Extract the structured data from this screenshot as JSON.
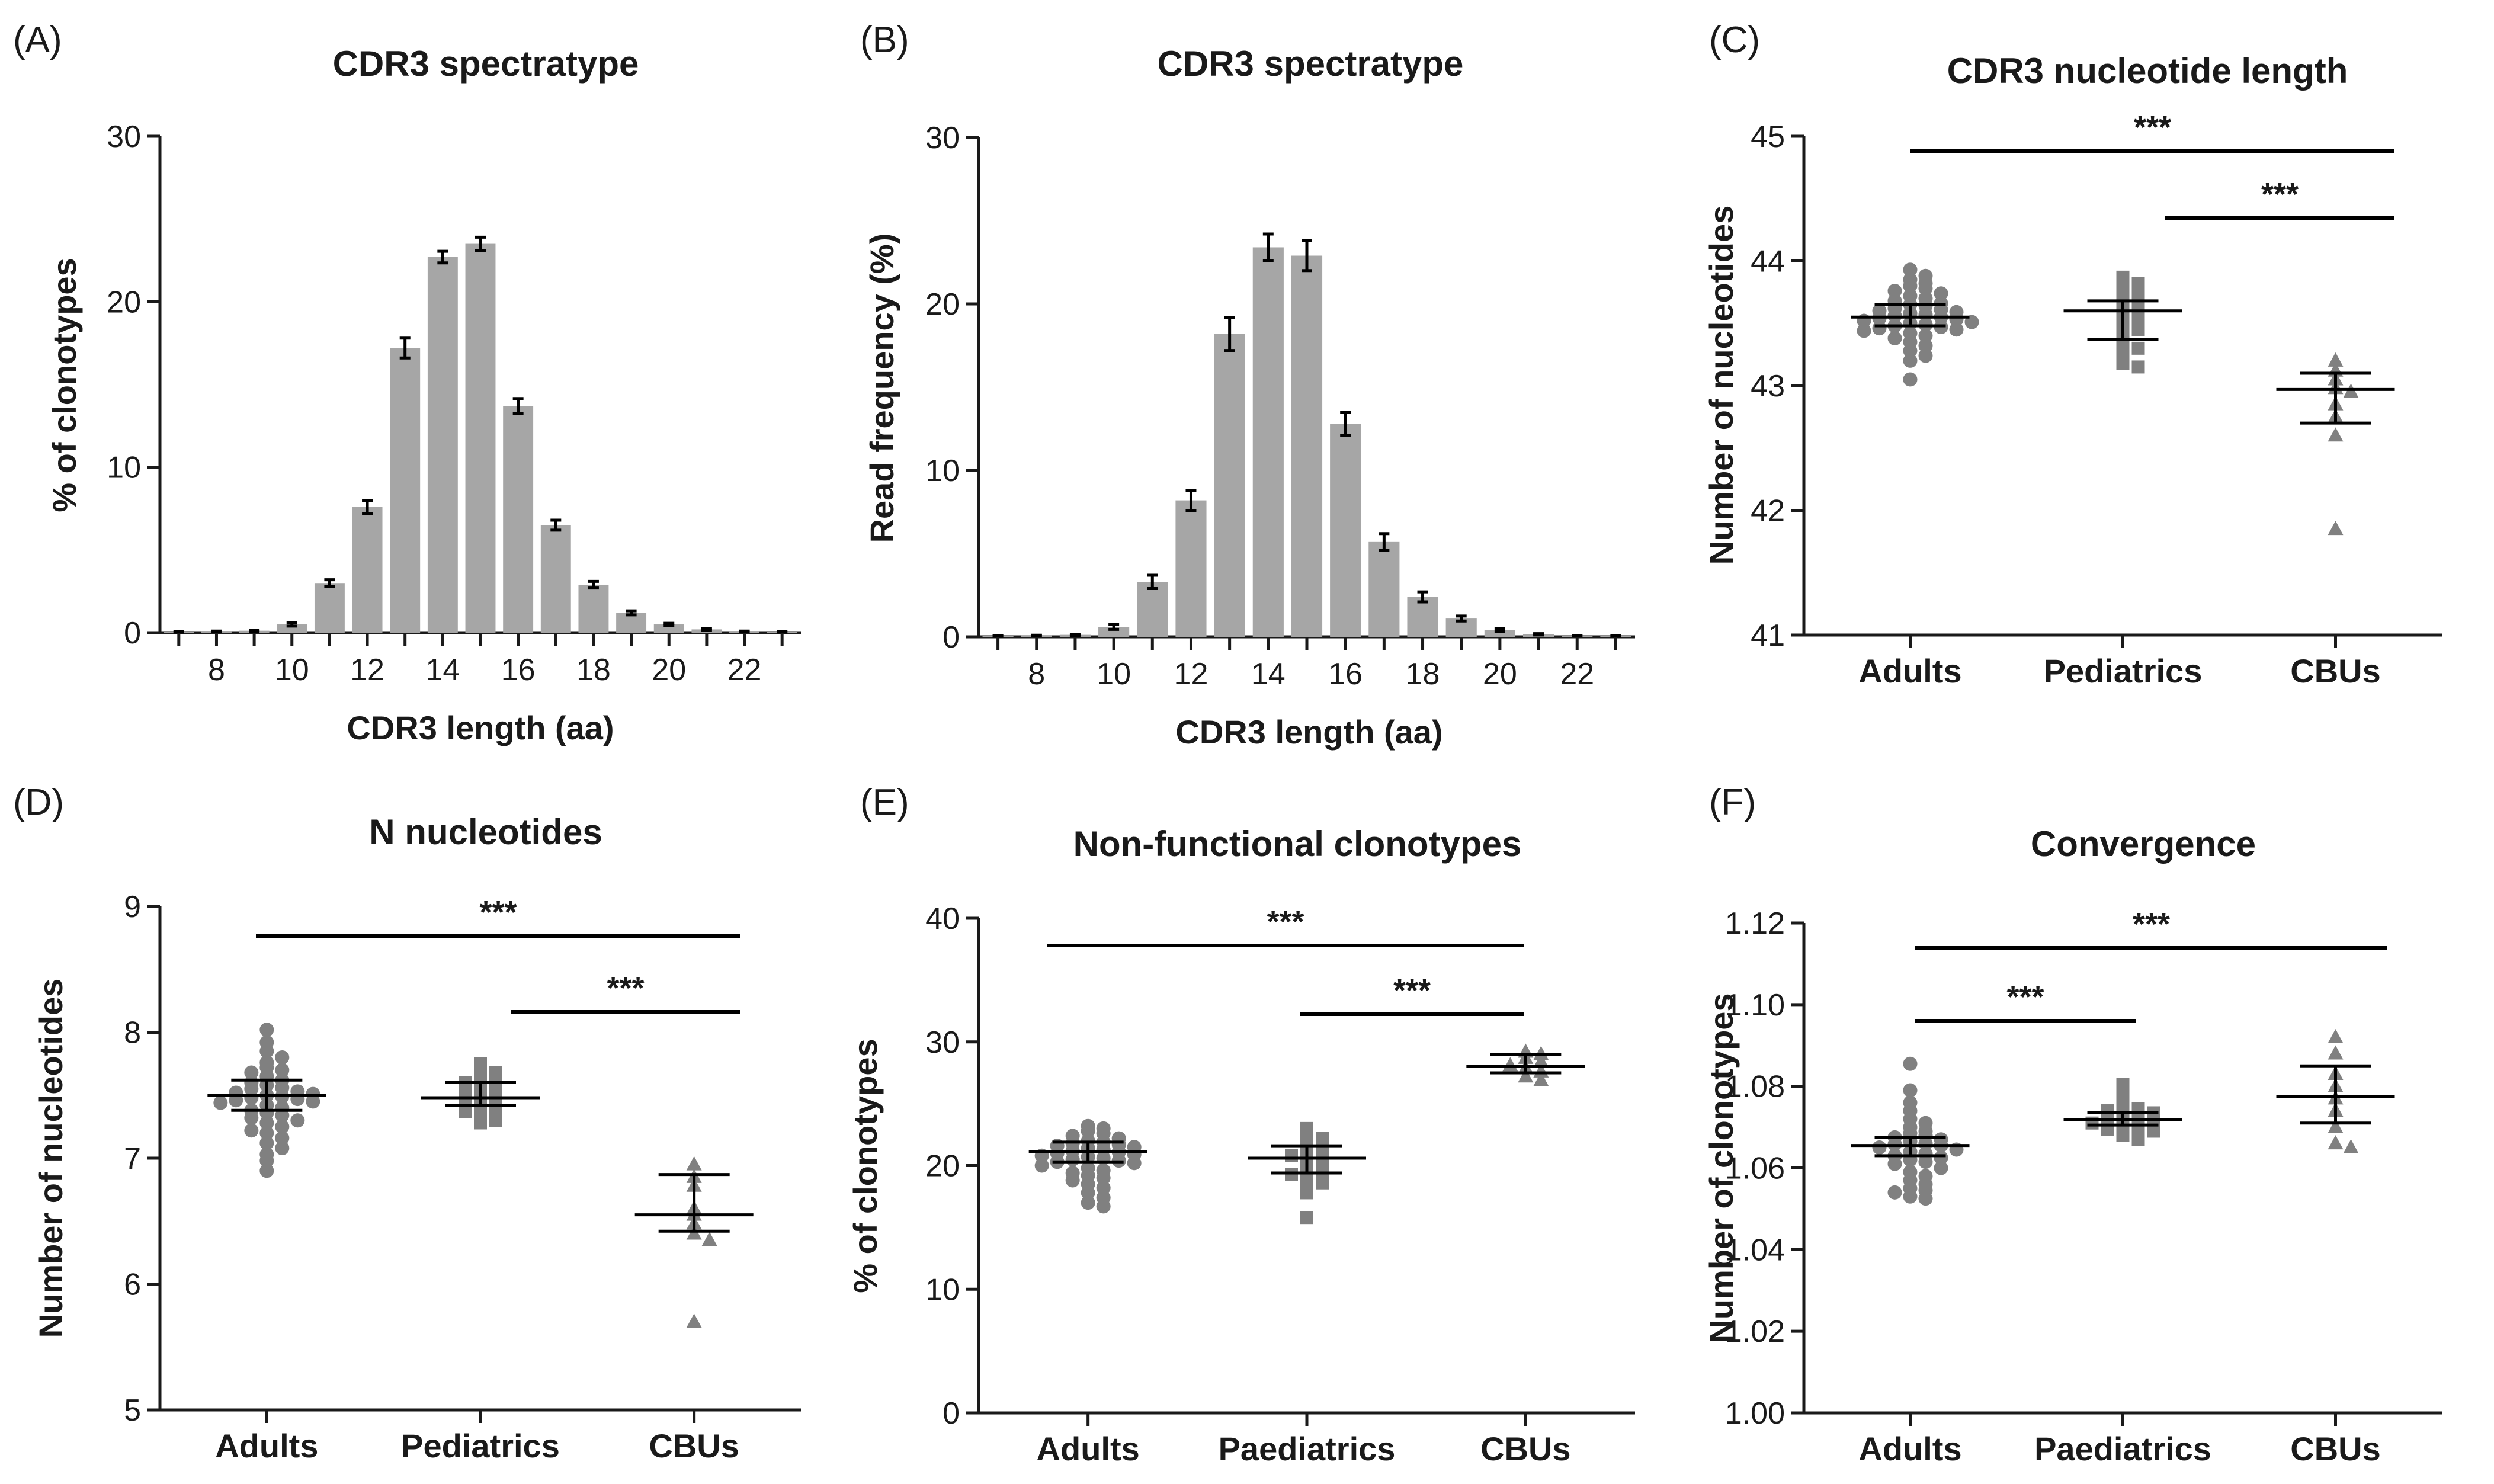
{
  "colors": {
    "bar": "#a6a6a6",
    "point": "#808080",
    "line": "#000000"
  },
  "chart_data": [
    {
      "panel": "(A)",
      "type": "bar",
      "title": "CDR3 spectratype",
      "xlabel": "CDR3 length (aa)",
      "ylabel": "% of clonotypes",
      "categories": [
        7,
        8,
        9,
        10,
        11,
        12,
        13,
        14,
        15,
        16,
        17,
        18,
        19,
        20,
        21,
        22,
        23
      ],
      "xtick_labels": [
        "8",
        "10",
        "12",
        "14",
        "16",
        "18",
        "20",
        "22"
      ],
      "values": [
        0.05,
        0.08,
        0.12,
        0.5,
        3.0,
        7.6,
        17.2,
        22.7,
        23.5,
        13.7,
        6.5,
        2.9,
        1.2,
        0.5,
        0.2,
        0.08,
        0.05
      ],
      "errors": [
        0.02,
        0.02,
        0.03,
        0.1,
        0.2,
        0.4,
        0.6,
        0.35,
        0.4,
        0.45,
        0.3,
        0.2,
        0.12,
        0.07,
        0.04,
        0.02,
        0.02
      ],
      "ylim": [
        0,
        30
      ],
      "yticks": [
        0,
        10,
        20,
        30
      ]
    },
    {
      "panel": "(B)",
      "type": "bar",
      "title": "CDR3 spectratype",
      "xlabel": "CDR3 length (aa)",
      "ylabel": "Read frequency (%)",
      "categories": [
        7,
        8,
        9,
        10,
        11,
        12,
        13,
        14,
        15,
        16,
        17,
        18,
        19,
        20,
        21,
        22,
        23
      ],
      "xtick_labels": [
        "8",
        "10",
        "12",
        "14",
        "16",
        "18",
        "20",
        "22"
      ],
      "values": [
        0.05,
        0.08,
        0.12,
        0.6,
        3.3,
        8.2,
        18.2,
        23.4,
        22.9,
        12.8,
        5.7,
        2.4,
        1.1,
        0.4,
        0.15,
        0.07,
        0.05
      ],
      "errors": [
        0.02,
        0.02,
        0.03,
        0.15,
        0.4,
        0.6,
        1.0,
        0.8,
        0.9,
        0.7,
        0.5,
        0.3,
        0.15,
        0.08,
        0.04,
        0.02,
        0.02
      ],
      "ylim": [
        0,
        30
      ],
      "yticks": [
        0,
        10,
        20,
        30
      ]
    },
    {
      "panel": "(C)",
      "type": "scatter",
      "title": "CDR3 nucleotide length",
      "ylabel": "Number of nucleotides",
      "categories": [
        "Adults",
        "Pediatrics",
        "CBUs"
      ],
      "ylim": [
        41,
        45
      ],
      "yticks": [
        "41",
        "42",
        "43",
        "44",
        "45"
      ],
      "series": [
        {
          "name": "Adults",
          "marker": "circle",
          "median": 43.55,
          "q1": 43.48,
          "q3": 43.65,
          "values": [
            43.93,
            43.88,
            43.85,
            43.82,
            43.8,
            43.78,
            43.76,
            43.74,
            43.72,
            43.7,
            43.68,
            43.66,
            43.65,
            43.64,
            43.62,
            43.61,
            43.6,
            43.59,
            43.58,
            43.57,
            43.56,
            43.55,
            43.54,
            43.53,
            43.52,
            43.51,
            43.5,
            43.49,
            43.48,
            43.47,
            43.46,
            43.45,
            43.44,
            43.42,
            43.4,
            43.38,
            43.35,
            43.32,
            43.28,
            43.24,
            43.2,
            43.05
          ]
        },
        {
          "name": "Pediatrics",
          "marker": "square",
          "median": 43.6,
          "q1": 43.37,
          "q3": 43.68,
          "values": [
            43.87,
            43.82,
            43.78,
            43.74,
            43.7,
            43.66,
            43.62,
            43.6,
            43.58,
            43.55,
            43.5,
            43.45,
            43.4,
            43.35,
            43.3,
            43.25,
            43.18,
            43.15
          ]
        },
        {
          "name": "CBUs",
          "marker": "triangle",
          "median": 42.97,
          "q1": 42.7,
          "q3": 43.1,
          "values": [
            43.2,
            43.12,
            43.05,
            42.98,
            42.95,
            42.85,
            42.75,
            42.6,
            41.85
          ]
        }
      ],
      "significance": [
        {
          "from": "Adults",
          "to": "CBUs",
          "label": "***"
        },
        {
          "from": "Pediatrics",
          "to": "CBUs",
          "label": "***"
        }
      ]
    },
    {
      "panel": "(D)",
      "type": "scatter",
      "title": "N nucleotides",
      "ylabel": "Number of nucleotides",
      "categories": [
        "Adults",
        "Pediatrics",
        "CBUs"
      ],
      "ylim": [
        5,
        9
      ],
      "yticks": [
        "5",
        "6",
        "7",
        "8",
        "9"
      ],
      "series": [
        {
          "name": "Adults",
          "marker": "circle",
          "median": 7.5,
          "q1": 7.38,
          "q3": 7.62,
          "values": [
            8.02,
            7.92,
            7.85,
            7.8,
            7.76,
            7.72,
            7.7,
            7.68,
            7.65,
            7.62,
            7.6,
            7.58,
            7.56,
            7.55,
            7.53,
            7.52,
            7.51,
            7.5,
            7.49,
            7.48,
            7.47,
            7.46,
            7.45,
            7.44,
            7.42,
            7.4,
            7.38,
            7.36,
            7.34,
            7.32,
            7.3,
            7.28,
            7.25,
            7.22,
            7.2,
            7.16,
            7.12,
            7.08,
            7.03,
            6.98,
            6.9
          ]
        },
        {
          "name": "Pediatrics",
          "marker": "square",
          "median": 7.48,
          "q1": 7.42,
          "q3": 7.6,
          "values": [
            7.75,
            7.72,
            7.68,
            7.65,
            7.62,
            7.6,
            7.57,
            7.54,
            7.52,
            7.5,
            7.48,
            7.45,
            7.42,
            7.4,
            7.37,
            7.34,
            7.3,
            7.28
          ]
        },
        {
          "name": "CBUs",
          "marker": "triangle",
          "median": 6.55,
          "q1": 6.42,
          "q3": 6.87,
          "values": [
            6.95,
            6.85,
            6.78,
            6.6,
            6.55,
            6.48,
            6.4,
            6.35,
            5.7
          ]
        }
      ],
      "significance": [
        {
          "from": "Adults",
          "to": "CBUs",
          "label": "***"
        },
        {
          "from": "Pediatrics",
          "to": "CBUs",
          "label": "***"
        }
      ]
    },
    {
      "panel": "(E)",
      "type": "scatter",
      "title": "Non-functional clonotypes",
      "ylabel": "% of clonotypes",
      "categories": [
        "Adults",
        "Paediatrics",
        "CBUs"
      ],
      "ylim": [
        0,
        40
      ],
      "yticks": [
        "0",
        "10",
        "20",
        "30",
        "40"
      ],
      "series": [
        {
          "name": "Adults",
          "marker": "circle",
          "median": 21.1,
          "q1": 20.3,
          "q3": 21.9,
          "values": [
            23.2,
            23.0,
            22.8,
            22.6,
            22.4,
            22.2,
            22.0,
            21.9,
            21.8,
            21.7,
            21.6,
            21.5,
            21.4,
            21.3,
            21.2,
            21.1,
            21.0,
            20.9,
            20.8,
            20.7,
            20.6,
            20.5,
            20.4,
            20.3,
            20.2,
            20.0,
            19.8,
            19.6,
            19.4,
            19.2,
            19.0,
            18.8,
            18.5,
            18.2,
            17.8,
            17.4,
            17.0,
            16.7
          ]
        },
        {
          "name": "Paediatrics",
          "marker": "square",
          "median": 20.6,
          "q1": 19.4,
          "q3": 21.6,
          "values": [
            23.0,
            22.6,
            22.2,
            21.9,
            21.6,
            21.3,
            21.0,
            20.8,
            20.5,
            20.2,
            19.9,
            19.6,
            19.3,
            19.0,
            18.6,
            18.2,
            17.8,
            15.8
          ]
        },
        {
          "name": "CBUs",
          "marker": "triangle",
          "median": 28.0,
          "q1": 27.5,
          "q3": 29.0,
          "values": [
            29.2,
            29.0,
            28.7,
            28.4,
            28.1,
            27.9,
            27.6,
            27.2,
            26.9
          ]
        }
      ],
      "significance": [
        {
          "from": "Adults",
          "to": "CBUs",
          "label": "***"
        },
        {
          "from": "Paediatrics",
          "to": "CBUs",
          "label": "***"
        }
      ]
    },
    {
      "panel": "(F)",
      "type": "scatter",
      "title": "Convergence",
      "ylabel": "Number of clonotypes",
      "categories": [
        "Adults",
        "Paediatrics",
        "CBUs"
      ],
      "ylim": [
        1.0,
        1.12
      ],
      "yticks": [
        "1.00",
        "1.02",
        "1.04",
        "1.06",
        "1.08",
        "1.10",
        "1.12"
      ],
      "series": [
        {
          "name": "Adults",
          "marker": "circle",
          "median": 1.0655,
          "q1": 1.063,
          "q3": 1.0675,
          "values": [
            1.0855,
            1.079,
            1.076,
            1.074,
            1.072,
            1.071,
            1.07,
            1.069,
            1.0685,
            1.068,
            1.0675,
            1.067,
            1.0665,
            1.066,
            1.0658,
            1.0655,
            1.065,
            1.0645,
            1.064,
            1.0635,
            1.063,
            1.0625,
            1.062,
            1.0615,
            1.061,
            1.06,
            1.059,
            1.058,
            1.057,
            1.056,
            1.055,
            1.0545,
            1.054,
            1.053,
            1.0525
          ]
        },
        {
          "name": "Paediatrics",
          "marker": "square",
          "median": 1.0718,
          "q1": 1.0705,
          "q3": 1.0735,
          "values": [
            1.0805,
            1.078,
            1.0765,
            1.075,
            1.0745,
            1.074,
            1.0735,
            1.073,
            1.0725,
            1.072,
            1.0715,
            1.071,
            1.0705,
            1.07,
            1.0695,
            1.069,
            1.068,
            1.067
          ]
        },
        {
          "name": "CBUs",
          "marker": "triangle",
          "median": 1.0775,
          "q1": 1.071,
          "q3": 1.085,
          "values": [
            1.092,
            1.088,
            1.083,
            1.08,
            1.077,
            1.074,
            1.07,
            1.066,
            1.065
          ]
        }
      ],
      "significance": [
        {
          "from": "Adults",
          "to": "CBUs",
          "label": "***"
        },
        {
          "from": "Adults",
          "to": "Paediatrics",
          "label": "***"
        }
      ]
    }
  ]
}
